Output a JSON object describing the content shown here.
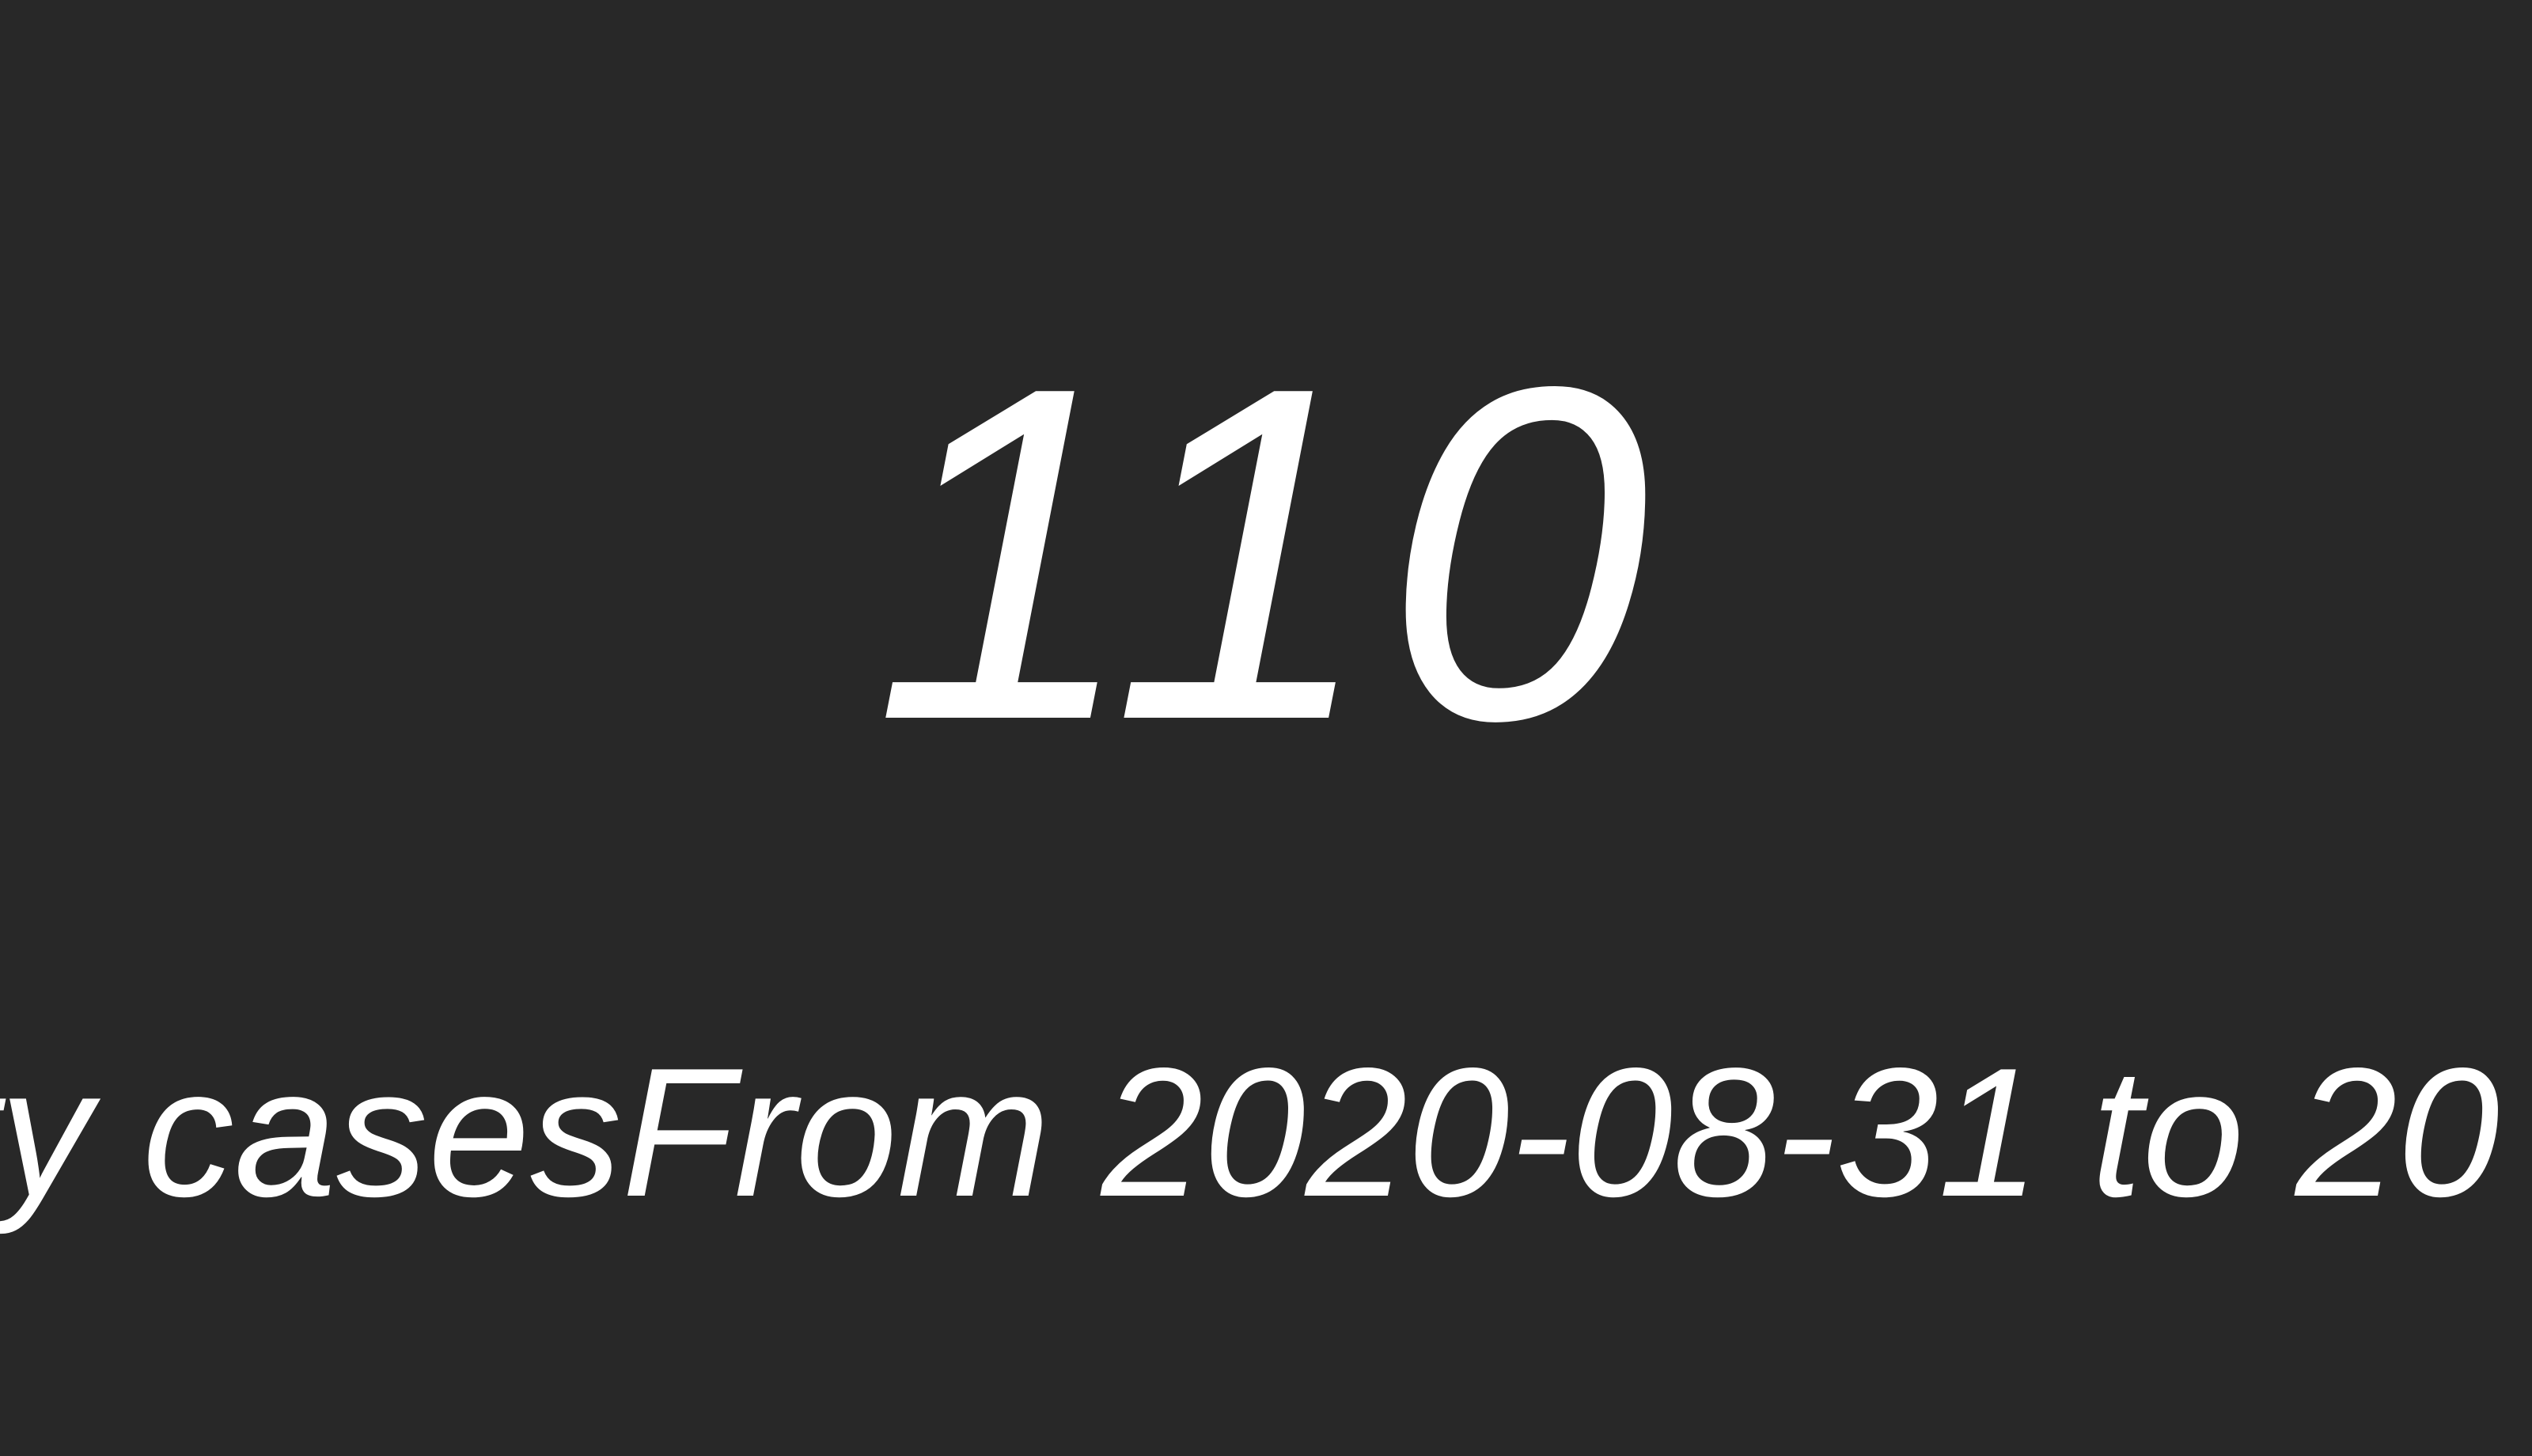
{
  "stat": {
    "value": "110",
    "caption": "ty casesFrom 2020-08-31 to 20"
  },
  "colors": {
    "background": "#282828",
    "text": "#ffffff"
  }
}
